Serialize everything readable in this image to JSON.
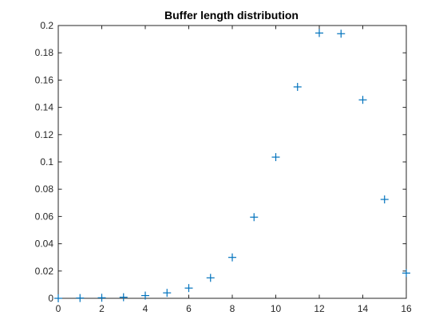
{
  "chart_data": {
    "type": "scatter",
    "title": "Buffer length distribution",
    "xlabel": "",
    "ylabel": "",
    "xlim": [
      0,
      16
    ],
    "ylim": [
      0,
      0.2
    ],
    "x_ticks": [
      "0",
      "2",
      "4",
      "6",
      "8",
      "10",
      "12",
      "14",
      "16"
    ],
    "y_ticks": [
      "0",
      "0.02",
      "0.04",
      "0.06",
      "0.08",
      "0.1",
      "0.12",
      "0.14",
      "0.16",
      "0.18",
      "0.2"
    ],
    "grid": false,
    "marker": "+",
    "marker_color": "#0072BD",
    "series": [
      {
        "x": [
          0,
          1,
          2,
          3,
          4,
          5,
          6,
          7,
          8,
          9,
          10,
          11,
          12,
          13,
          14,
          15,
          16
        ],
        "y": [
          0.0,
          0.0002,
          0.0004,
          0.0008,
          0.002,
          0.004,
          0.0075,
          0.015,
          0.03,
          0.0595,
          0.1035,
          0.155,
          0.1945,
          0.194,
          0.1455,
          0.0725,
          0.0185
        ]
      }
    ]
  }
}
